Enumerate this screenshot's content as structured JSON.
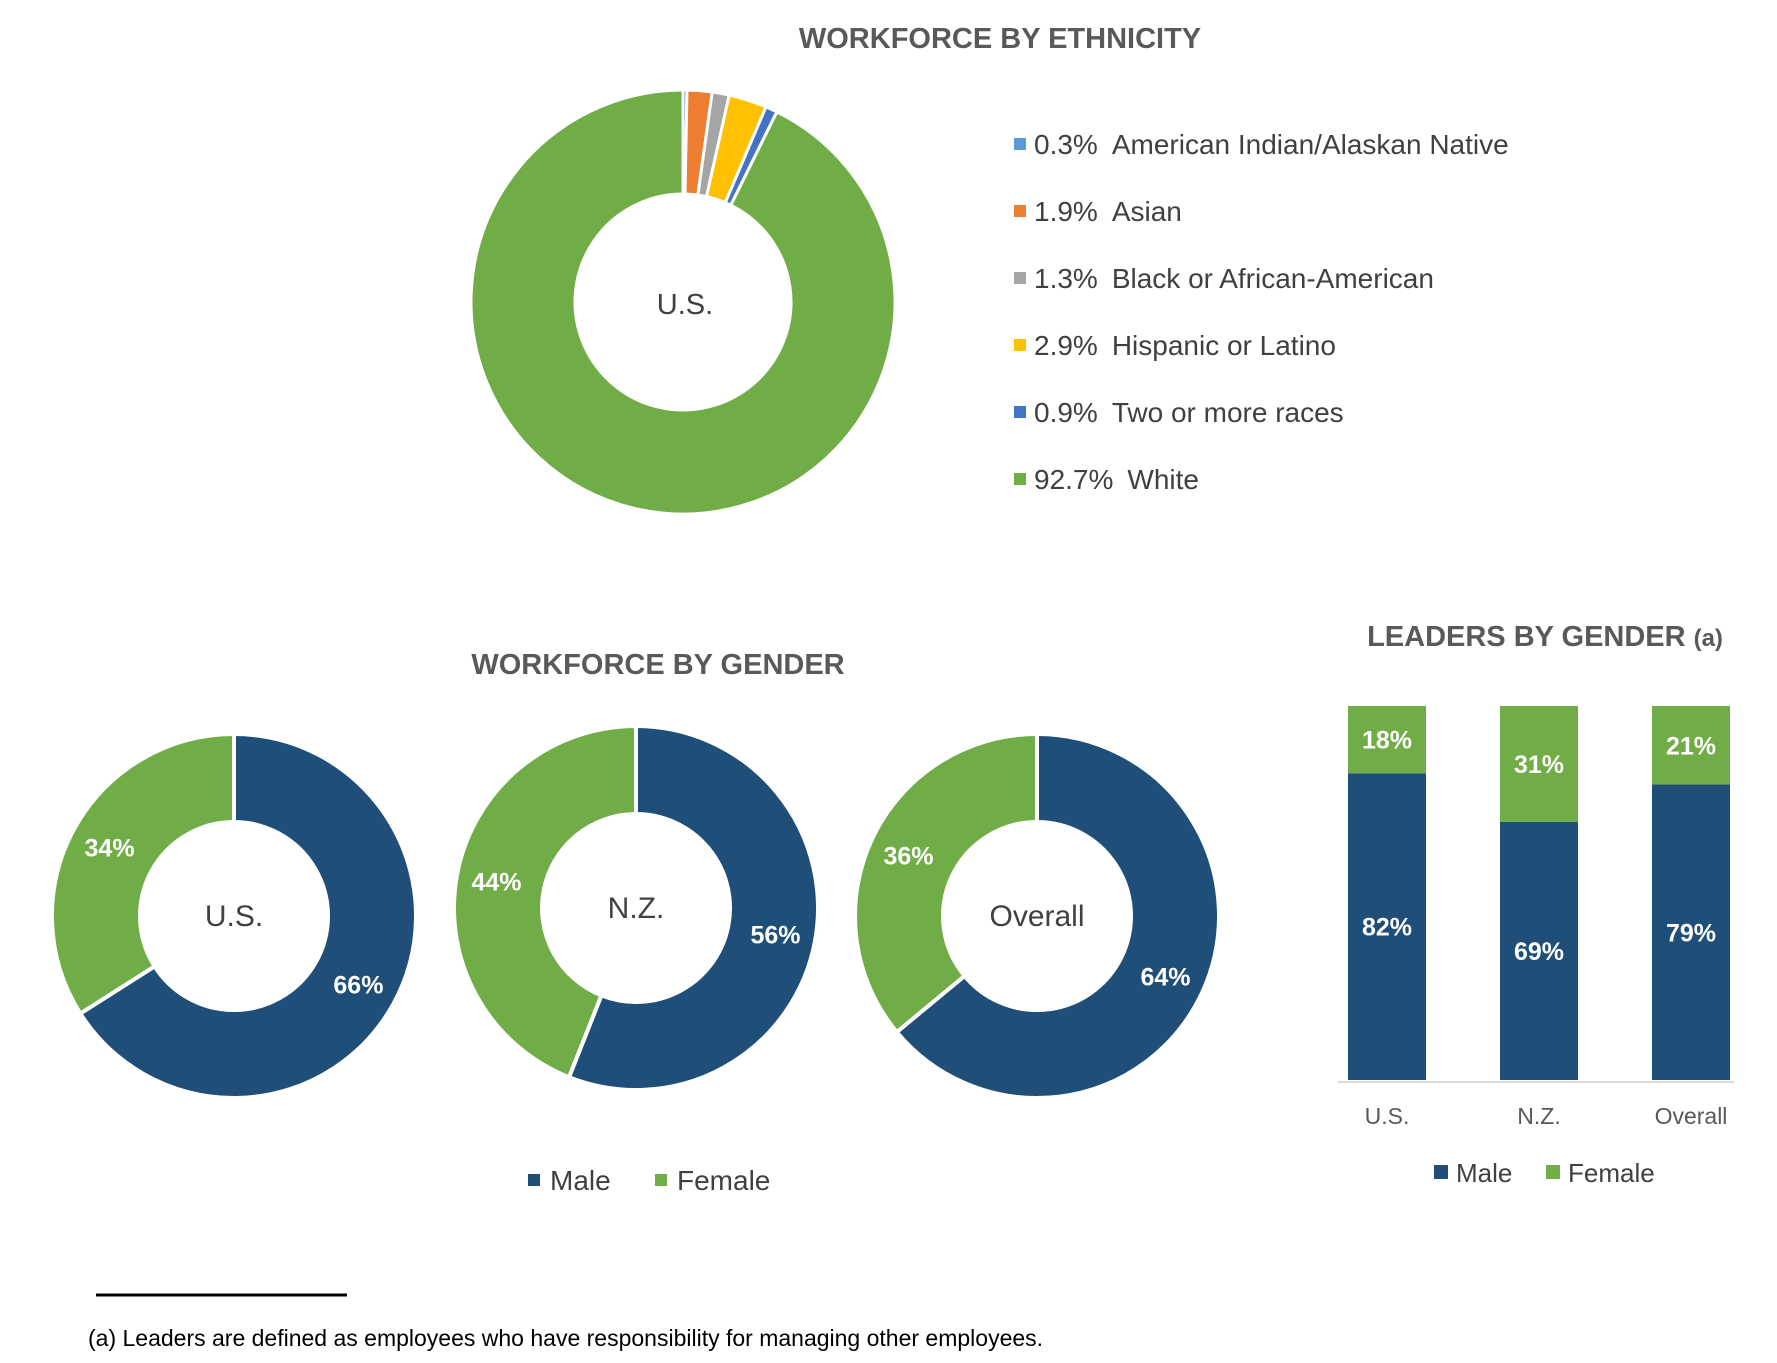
{
  "chart_data": [
    {
      "id": "ethnicity",
      "type": "pie",
      "title": "WORKFORCE BY ETHNICITY",
      "center_label": "U.S.",
      "slices": [
        {
          "label": "American Indian/Alaskan Native",
          "value": 0.3,
          "value_label": "0.3%",
          "color": "#5B9BD5"
        },
        {
          "label": "Asian",
          "value": 1.9,
          "value_label": "1.9%",
          "color": "#ED7D31"
        },
        {
          "label": "Black or African-American",
          "value": 1.3,
          "value_label": "1.3%",
          "color": "#A5A5A5"
        },
        {
          "label": "Hispanic or Latino",
          "value": 2.9,
          "value_label": "2.9%",
          "color": "#FFC000"
        },
        {
          "label": "Two or more races",
          "value": 0.9,
          "value_label": "0.9%",
          "color": "#4472C4"
        },
        {
          "label": "White",
          "value": 92.7,
          "value_label": "92.7%",
          "color": "#70AD47"
        }
      ],
      "legend_position": "right"
    },
    {
      "id": "gender",
      "type": "pie",
      "title": "WORKFORCE BY GENDER",
      "charts": [
        {
          "center_label": "U.S.",
          "slices": [
            {
              "label": "Male",
              "value": 66,
              "value_label": "66%"
            },
            {
              "label": "Female",
              "value": 34,
              "value_label": "34%"
            }
          ]
        },
        {
          "center_label": "N.Z.",
          "slices": [
            {
              "label": "Male",
              "value": 56,
              "value_label": "56%"
            },
            {
              "label": "Female",
              "value": 44,
              "value_label": "44%"
            }
          ]
        },
        {
          "center_label": "Overall",
          "slices": [
            {
              "label": "Male",
              "value": 64,
              "value_label": "64%"
            },
            {
              "label": "Female",
              "value": 36,
              "value_label": "36%"
            }
          ]
        }
      ],
      "legend": [
        {
          "label": "Male",
          "color": "#1F4E79"
        },
        {
          "label": "Female",
          "color": "#70AD47"
        }
      ],
      "legend_position": "bottom"
    },
    {
      "id": "leaders",
      "type": "bar",
      "stacked": true,
      "title": "LEADERS BY GENDER",
      "title_suffix": "(a)",
      "categories": [
        "U.S.",
        "N.Z.",
        "Overall"
      ],
      "series": [
        {
          "name": "Male",
          "color": "#1F4E79",
          "values": [
            82,
            69,
            79
          ],
          "value_labels": [
            "82%",
            "69%",
            "79%"
          ]
        },
        {
          "name": "Female",
          "color": "#70AD47",
          "values": [
            18,
            31,
            21
          ],
          "value_labels": [
            "18%",
            "31%",
            "21%"
          ]
        }
      ],
      "ylim": [
        0,
        100
      ],
      "legend_position": "bottom"
    }
  ],
  "footnote": "(a) Leaders are defined as employees who have responsibility for managing other employees."
}
